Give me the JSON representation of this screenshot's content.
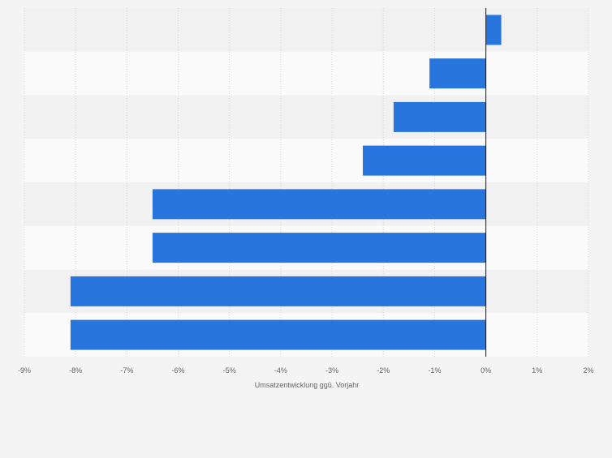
{
  "chart_data": {
    "type": "bar",
    "orientation": "horizontal",
    "categories": [
      "",
      "",
      "",
      "",
      "",
      "",
      "",
      ""
    ],
    "values": [
      0.3,
      -1.1,
      -1.8,
      -2.4,
      -6.5,
      -6.5,
      -8.1,
      -8.1
    ],
    "xlabel": "Umsatzentwicklung ggü. Vorjahr",
    "xlim": [
      -9,
      2
    ],
    "xticks": [
      -9,
      -8,
      -7,
      -6,
      -5,
      -4,
      -3,
      -2,
      -1,
      0,
      1,
      2
    ],
    "xtick_labels": [
      "-9%",
      "-8%",
      "-7%",
      "-6%",
      "-5%",
      "-4%",
      "-3%",
      "-2%",
      "-1%",
      "0%",
      "1%",
      "2%"
    ],
    "grid": "vertical",
    "legend": "none"
  },
  "colors": {
    "bar": "#2876dd",
    "background": "#f4f4f4",
    "row_band_dark": "#f1f1f1",
    "row_band_light": "#fafafa",
    "grid": "#d6d6d6",
    "zero_line": "#1a1a1a",
    "tick_text": "#666666"
  }
}
